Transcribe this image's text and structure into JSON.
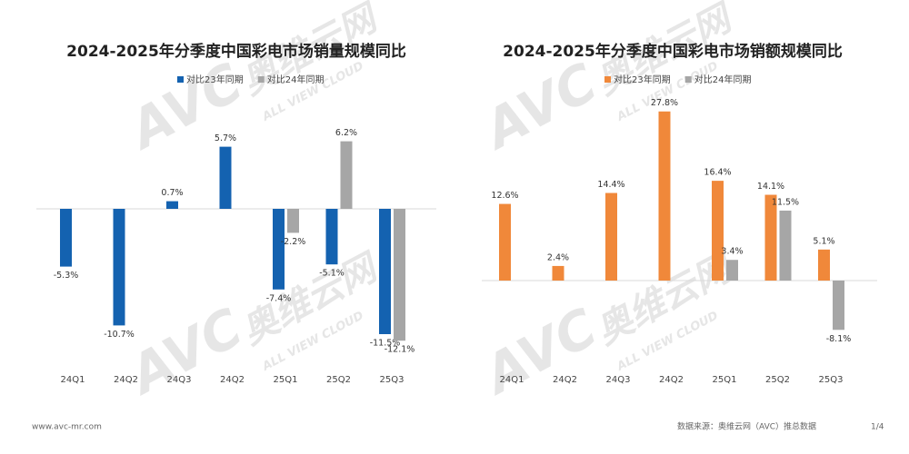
{
  "chart_data": [
    {
      "type": "bar",
      "title": "2024-2025年分季度中国彩电市场销量规模同比",
      "categories": [
        "24Q1",
        "24Q2",
        "24Q3",
        "24Q2",
        "25Q1",
        "25Q2",
        "25Q3"
      ],
      "series": [
        {
          "name": "对比23年同期",
          "color": "#1462b0",
          "values": [
            -5.3,
            -10.7,
            0.7,
            5.7,
            -7.4,
            -5.1,
            -11.5
          ],
          "value_labels": [
            "-5.3%",
            "-10.7%",
            "0.7%",
            "5.7%",
            "-7.4%",
            "-5.1%",
            "-11.5%"
          ]
        },
        {
          "name": "对比24年同期",
          "color": "#a6a6a6",
          "values": [
            null,
            null,
            null,
            null,
            -2.2,
            6.2,
            -12.1
          ],
          "value_labels": [
            null,
            null,
            null,
            null,
            "-2.2%",
            "6.2%",
            "-12.1%"
          ]
        }
      ]
    },
    {
      "type": "bar",
      "title": "2024-2025年分季度中国彩电市场销额规模同比",
      "categories": [
        "24Q1",
        "24Q2",
        "24Q3",
        "24Q2",
        "25Q1",
        "25Q2",
        "25Q3"
      ],
      "series": [
        {
          "name": "对比23年同期",
          "color": "#f0883a",
          "values": [
            12.6,
            2.4,
            14.4,
            27.8,
            16.4,
            14.1,
            5.1
          ],
          "value_labels": [
            "12.6%",
            "2.4%",
            "14.4%",
            "27.8%",
            "16.4%",
            "14.1%",
            "5.1%"
          ]
        },
        {
          "name": "对比24年同期",
          "color": "#a6a6a6",
          "values": [
            null,
            null,
            null,
            null,
            3.4,
            11.5,
            -8.1
          ],
          "value_labels": [
            null,
            null,
            null,
            null,
            "3.4%",
            "11.5%",
            "-8.1%"
          ]
        }
      ]
    }
  ],
  "watermark": {
    "logo": "AVC",
    "name": "奥维云网",
    "sub": "ALL VIEW CLOUD"
  },
  "footer": {
    "website": "www.avc-mr.com",
    "source": "数据来源：奥维云网（AVC）推总数据",
    "page": "1/4"
  }
}
